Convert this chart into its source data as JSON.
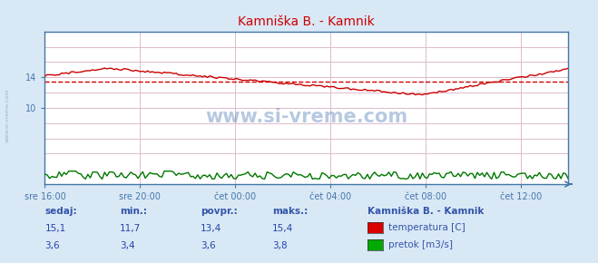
{
  "title": "Kamniška B. - Kamnik",
  "title_color": "#cc0000",
  "bg_color": "#d9e8f5",
  "plot_bg_color": "#ffffff",
  "border_color": "#4477aa",
  "grid_color": "#ddbbcc",
  "x_labels": [
    "sre 16:00",
    "sre 20:00",
    "čet 00:00",
    "čet 04:00",
    "čet 08:00",
    "čet 12:00"
  ],
  "x_ticks_norm": [
    0.0,
    0.1818,
    0.3636,
    0.5455,
    0.7273,
    0.9091
  ],
  "ylim": [
    0,
    20
  ],
  "avg_line_value": 13.4,
  "avg_line_color": "#cc0000",
  "temp_color": "#cc0000",
  "flow_color": "#007700",
  "watermark_text": "www.si-vreme.com",
  "watermark_color": "#3366aa",
  "watermark_alpha": 0.35,
  "legend_title": "Kamniška B. - Kamnik",
  "legend_items": [
    {
      "label": "temperatura [C]",
      "color": "#dd0000"
    },
    {
      "label": "pretok [m3/s]",
      "color": "#00aa00"
    }
  ],
  "stats": {
    "headers": [
      "sedaj:",
      "min.:",
      "povpr.:",
      "maks.:"
    ],
    "temp_row": [
      "15,1",
      "11,7",
      "13,4",
      "15,4"
    ],
    "flow_row": [
      "3,6",
      "3,4",
      "3,6",
      "3,8"
    ]
  },
  "n_points": 220
}
